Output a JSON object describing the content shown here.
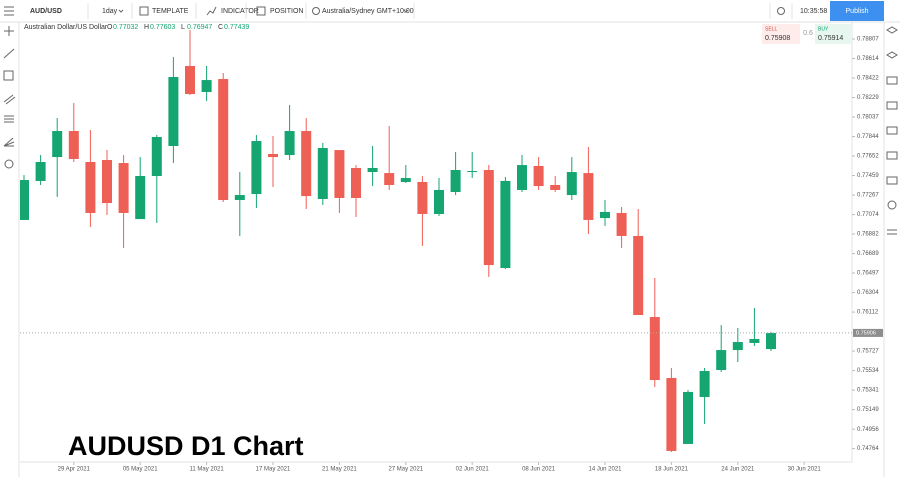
{
  "header": {
    "symbol": "AUD/USD",
    "interval": "1day",
    "template": "TEMPLATE",
    "indicator": "INDICATOR",
    "position": "POSITION",
    "timezone": "Australia/Sydney GMT+10:00",
    "clock": "10:35:58",
    "publish": "Publish"
  },
  "quote": {
    "sell_label": "SELL",
    "sell": 0.75908,
    "spread": 0.6,
    "buy_label": "BUY",
    "buy": 0.75914
  },
  "chart_data": {
    "type": "candlestick",
    "title": "AUDUSD D1 Chart",
    "instrument_name": "Australian Dollar/US Dollar",
    "ohlc_labels": [
      "O",
      "H",
      "L",
      "C"
    ],
    "ohlc_values": [
      0.77032,
      0.77603,
      0.76947,
      0.77439
    ],
    "categories": [
      null,
      null,
      null,
      "29 Apr 2021",
      null,
      null,
      null,
      "05 May 2021",
      null,
      null,
      null,
      "11 May 2021",
      null,
      null,
      null,
      "17 May 2021",
      null,
      null,
      null,
      "21 May 2021",
      null,
      null,
      null,
      "27 May 2021",
      null,
      null,
      null,
      "02 Jun 2021",
      null,
      null,
      null,
      "08 Jun 2021",
      null,
      null,
      null,
      "14 Jun 2021",
      null,
      null,
      null,
      "18 Jun 2021",
      null,
      null,
      null,
      "24 Jun 2021",
      null,
      null,
      null,
      "30 Jun 2021"
    ],
    "open": [
      0.77021,
      0.77406,
      0.77642,
      0.77899,
      0.77593,
      0.77613,
      0.77583,
      0.7703,
      0.77455,
      0.77751,
      0.78541,
      0.78284,
      0.78412,
      0.77218,
      0.77277,
      0.77672,
      0.77662,
      0.77899,
      0.77228,
      0.77711,
      0.77534,
      0.77494,
      0.77484,
      0.77396,
      0.77396,
      0.7708,
      0.77297,
      0.77494,
      0.77514,
      0.76547,
      0.77317,
      0.77554,
      0.77366,
      0.77267,
      0.77484,
      0.7704,
      0.7709,
      0.76863,
      0.76063,
      0.75461,
      0.7481,
      0.75274,
      0.7554,
      0.75737,
      0.75807,
      0.75747,
      null,
      null
    ],
    "high": [
      0.77465,
      0.77662,
      0.78027,
      0.78175,
      0.77909,
      0.77711,
      0.77662,
      0.77642,
      0.7786,
      0.78629,
      0.78896,
      0.78541,
      0.78471,
      0.77494,
      0.7786,
      0.7785,
      0.78156,
      0.78027,
      0.77781,
      0.77711,
      0.77563,
      0.77751,
      0.77948,
      0.77563,
      0.77455,
      0.77435,
      0.77692,
      0.77692,
      0.77563,
      0.77445,
      0.77662,
      0.77642,
      0.77455,
      0.77642,
      0.77741,
      0.77218,
      0.77149,
      0.77129,
      0.76448,
      0.7556,
      0.75343,
      0.7556,
      0.75984,
      0.75955,
      0.76152,
      0.75915,
      null,
      null
    ],
    "low": [
      0.77021,
      0.77366,
      0.77248,
      0.77593,
      0.76952,
      0.7707,
      0.76744,
      0.7703,
      0.76991,
      0.77583,
      0.78254,
      0.78195,
      0.77198,
      0.76863,
      0.77139,
      0.77346,
      0.77613,
      0.77129,
      0.77169,
      0.7709,
      0.7705,
      0.77356,
      0.77317,
      0.77386,
      0.76764,
      0.7706,
      0.77267,
      0.77435,
      0.76458,
      0.76537,
      0.77297,
      0.77317,
      0.77297,
      0.77218,
      0.76882,
      0.76961,
      0.76744,
      0.76083,
      0.75372,
      0.74731,
      0.7481,
      0.75007,
      0.7552,
      0.75619,
      0.75777,
      0.75728,
      null,
      null
    ],
    "close": [
      0.77415,
      0.77593,
      0.77899,
      0.77623,
      0.7709,
      0.77188,
      0.7709,
      0.77455,
      0.7784,
      0.78432,
      0.78264,
      0.78402,
      0.77218,
      0.77267,
      0.778,
      0.77642,
      0.77899,
      0.77257,
      0.77731,
      0.77238,
      0.77238,
      0.77534,
      0.77366,
      0.77435,
      0.7708,
      0.77317,
      0.77514,
      0.77504,
      0.76576,
      0.77406,
      0.77563,
      0.77356,
      0.77317,
      0.77494,
      0.77021,
      0.771,
      0.76863,
      0.76083,
      0.75441,
      0.74741,
      0.75323,
      0.7553,
      0.75737,
      0.75816,
      0.75846,
      0.75905,
      null,
      null
    ],
    "up_color": "#14a571",
    "down_color": "#ee5f55",
    "last_price": 0.75906,
    "ylim": [
      0.74632,
      0.78896
    ],
    "yticks": [
      0.78807,
      0.78614,
      0.78422,
      0.78229,
      0.78037,
      0.77844,
      0.77652,
      0.77459,
      0.77267,
      0.77074,
      0.76882,
      0.76689,
      0.76497,
      0.76304,
      0.76112,
      0.75727,
      0.75534,
      0.75341,
      0.75149,
      0.74956,
      0.74764
    ]
  }
}
